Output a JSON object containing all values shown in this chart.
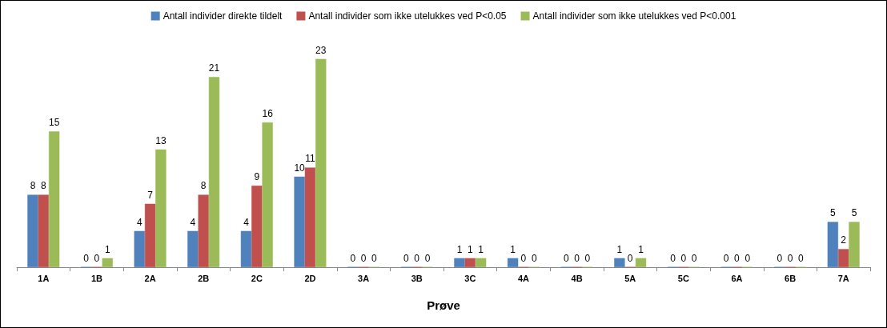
{
  "chart_data": {
    "type": "bar",
    "xlabel": "Prøve",
    "categories": [
      "1A",
      "1B",
      "2A",
      "2B",
      "2C",
      "2D",
      "3A",
      "3B",
      "3C",
      "4A",
      "4B",
      "5A",
      "5C",
      "6A",
      "6B",
      "7A"
    ],
    "series": [
      {
        "name": "Antall individer direkte tildelt",
        "color": "#4f81bd",
        "values": [
          8,
          0,
          4,
          4,
          4,
          10,
          0,
          0,
          1,
          1,
          0,
          1,
          0,
          0,
          0,
          5
        ]
      },
      {
        "name": "Antall individer som ikke utelukkes ved P<0.05",
        "color": "#c0504d",
        "values": [
          8,
          0,
          7,
          8,
          9,
          11,
          0,
          0,
          1,
          0,
          0,
          0,
          0,
          0,
          0,
          2
        ]
      },
      {
        "name": "Antall individer som ikke utelukkes ved P<0.001",
        "color": "#9bbb59",
        "values": [
          15,
          1,
          13,
          21,
          16,
          23,
          0,
          0,
          1,
          0,
          0,
          1,
          0,
          0,
          0,
          5
        ]
      }
    ],
    "data_labels": true,
    "grid": false,
    "legend": "top"
  }
}
